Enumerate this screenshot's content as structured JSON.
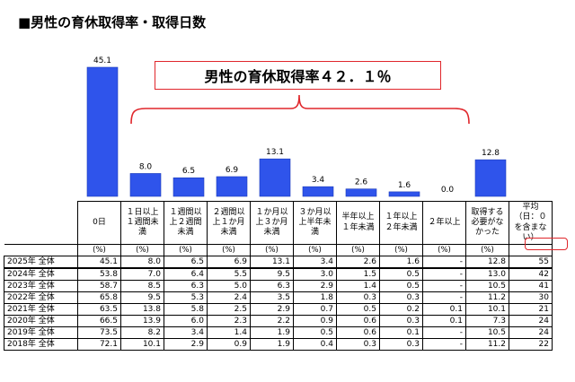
{
  "title": "■男性の育休取得率・取得日数",
  "callout": "男性の育休取得率４２．１％",
  "chart_data": {
    "type": "bar",
    "categories": [
      "0日",
      "1日以上1週間未満",
      "1週間以上2週間未満",
      "2週間以上1か月未満",
      "1か月以上3か月未満",
      "3か月以上半年未満",
      "半年以上1年未満",
      "1年以上2年未満",
      "2年以上",
      "取得する必要がなかった"
    ],
    "values": [
      45.1,
      8.0,
      6.5,
      6.9,
      13.1,
      3.4,
      2.6,
      1.6,
      0.0,
      12.8
    ],
    "value_labels": [
      "45.1",
      "8.0",
      "6.5",
      "6.9",
      "13.1",
      "3.4",
      "2.6",
      "1.6",
      "0.0",
      "12.8"
    ],
    "ylim": [
      0,
      45.1
    ],
    "color": "#2f54eb"
  },
  "table": {
    "headers": [
      "",
      "0日",
      "１日以上１週間未満",
      "１週間以上２週間未満",
      "２週間以上１か月未満",
      "１か月以上３か月未満",
      "３か月以上半年未満",
      "半年以上１年未満",
      "１年以上２年未満",
      "２年以上",
      "取得する必要がなかった",
      "平均（日：０を含まない）"
    ],
    "units": [
      "",
      "(%)",
      "(%)",
      "(%)",
      "(%)",
      "(%)",
      "(%)",
      "(%)",
      "(%)",
      "(%)",
      "(%)",
      ""
    ],
    "rows": [
      {
        "label": "2025年 全体",
        "values": [
          "45.1",
          "8.0",
          "6.5",
          "6.9",
          "13.1",
          "3.4",
          "2.6",
          "1.6",
          "-",
          "12.8",
          "55"
        ]
      },
      {
        "label": "2024年 全体",
        "values": [
          "53.8",
          "7.0",
          "6.4",
          "5.5",
          "9.5",
          "3.0",
          "1.5",
          "0.5",
          "-",
          "13.0",
          "42"
        ]
      },
      {
        "label": "2023年 全体",
        "values": [
          "58.7",
          "8.5",
          "6.3",
          "5.0",
          "6.3",
          "2.9",
          "1.4",
          "0.5",
          "-",
          "10.5",
          "41"
        ]
      },
      {
        "label": "2022年 全体",
        "values": [
          "65.8",
          "9.5",
          "5.3",
          "2.4",
          "3.5",
          "1.8",
          "0.3",
          "0.3",
          "-",
          "11.2",
          "30"
        ]
      },
      {
        "label": "2021年 全体",
        "values": [
          "63.5",
          "13.8",
          "5.8",
          "2.5",
          "2.9",
          "0.7",
          "0.5",
          "0.2",
          "0.1",
          "10.1",
          "21"
        ]
      },
      {
        "label": "2020年 全体",
        "values": [
          "66.5",
          "13.9",
          "6.0",
          "2.3",
          "2.2",
          "0.9",
          "0.6",
          "0.3",
          "0.1",
          "7.3",
          "24"
        ]
      },
      {
        "label": "2019年 全体",
        "values": [
          "73.5",
          "8.2",
          "3.4",
          "1.4",
          "1.9",
          "0.5",
          "0.6",
          "0.1",
          "-",
          "10.5",
          "24"
        ]
      },
      {
        "label": "2018年 全体",
        "values": [
          "72.1",
          "10.1",
          "2.9",
          "0.9",
          "1.9",
          "0.4",
          "0.3",
          "0.3",
          "-",
          "11.2",
          "22"
        ]
      }
    ]
  }
}
